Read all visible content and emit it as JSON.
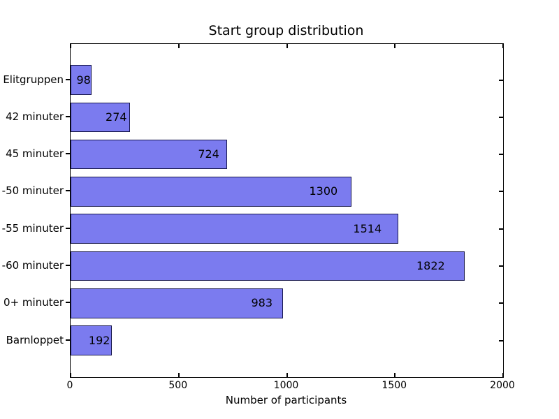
{
  "chart_data": {
    "type": "bar",
    "orientation": "horizontal",
    "title": "Start group distribution",
    "xlabel": "Number of participants",
    "ylabel": "",
    "categories": [
      "Elitgruppen",
      "42 minuter",
      "45 minuter",
      "-50 minuter",
      "-55 minuter",
      "-60 minuter",
      "0+ minuter",
      "Barnloppet"
    ],
    "values": [
      98,
      274,
      724,
      1300,
      1514,
      1822,
      983,
      192
    ],
    "value_labels": [
      "98",
      "274",
      "724",
      "1300",
      "1514",
      "1822",
      "983",
      "192"
    ],
    "x_ticks": [
      0,
      500,
      1000,
      1500,
      2000
    ],
    "x_tick_labels": [
      "0",
      "500",
      "1000",
      "1500",
      "2000"
    ],
    "xlim": [
      0,
      2000
    ],
    "grid": false,
    "legend": null,
    "colors": {
      "bar_fill": "#7b7bef",
      "bar_edge": "#16164a",
      "axis": "#000000",
      "text": "#000000",
      "background": "#ffffff"
    }
  }
}
